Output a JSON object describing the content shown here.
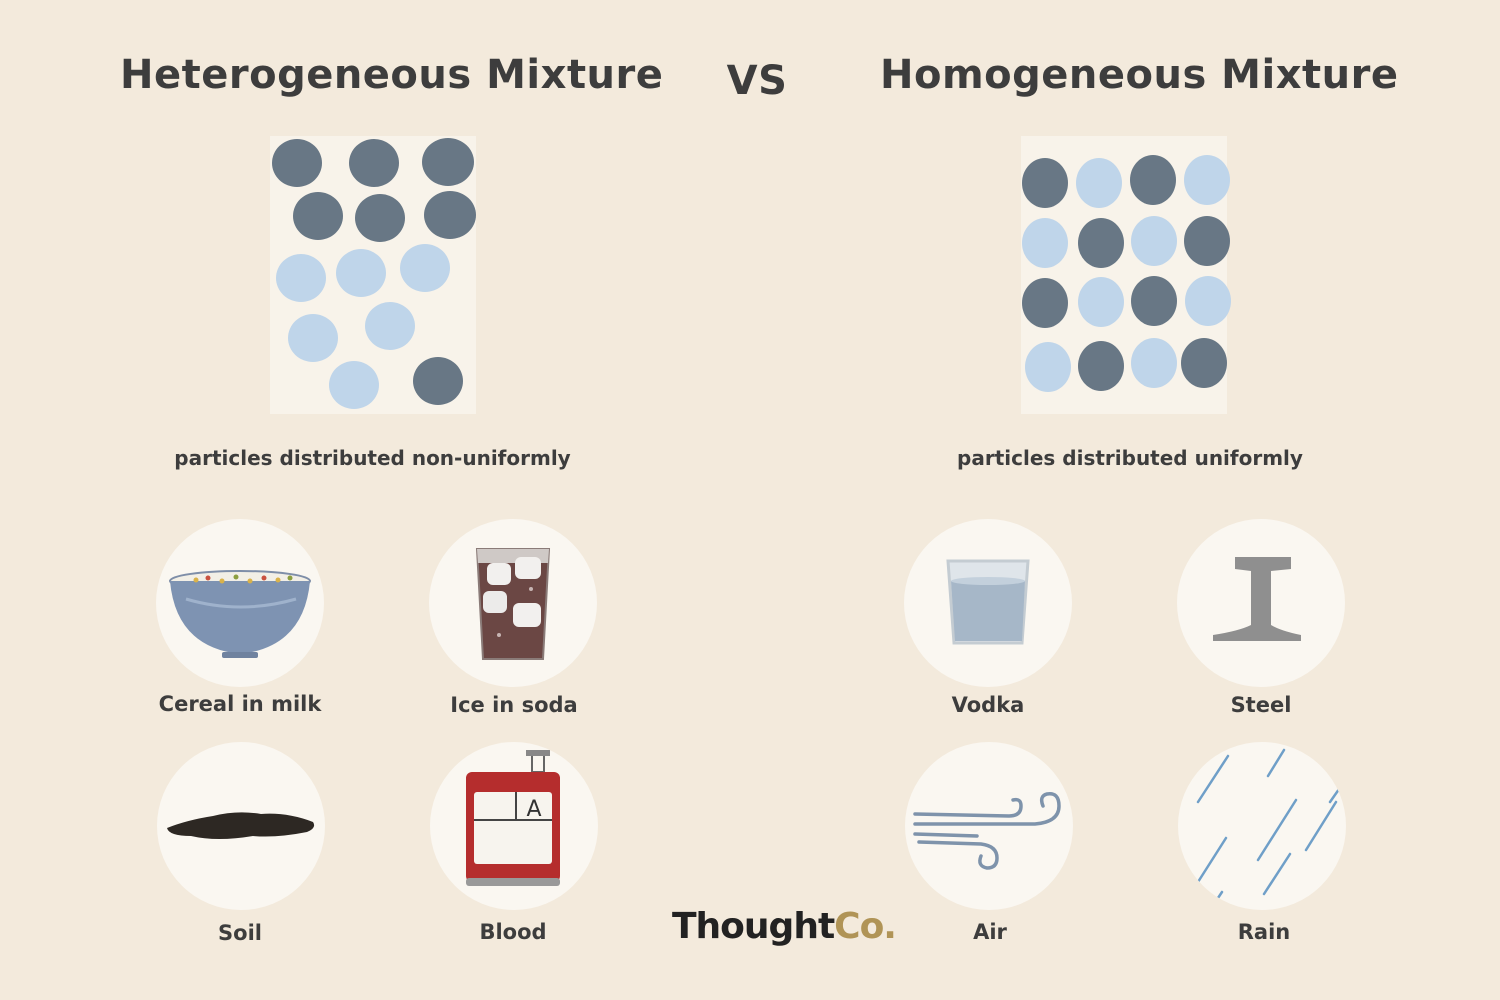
{
  "titles": {
    "left": "Heterogeneous Mixture",
    "vs": "VS",
    "right": "Homogeneous Mixture"
  },
  "captions": {
    "left": "particles distributed non-uniformly",
    "right": "particles distributed uniformly"
  },
  "heterogeneous_examples": [
    {
      "label": "Cereal in milk",
      "icon": "cereal-bowl-icon"
    },
    {
      "label": "Ice in soda",
      "icon": "soda-glass-icon"
    },
    {
      "label": "Soil",
      "icon": "soil-icon"
    },
    {
      "label": "Blood",
      "icon": "blood-bag-icon"
    }
  ],
  "homogeneous_examples": [
    {
      "label": "Vodka",
      "icon": "vodka-glass-icon"
    },
    {
      "label": "Steel",
      "icon": "steel-beam-icon"
    },
    {
      "label": "Air",
      "icon": "wind-icon"
    },
    {
      "label": "Rain",
      "icon": "rain-icon"
    }
  ],
  "blood_bag_letter": "A",
  "logo": {
    "part1": "Thought",
    "part2": "Co."
  },
  "colors": {
    "background": "#f3eadc",
    "dark_particle": "#687785",
    "light_particle": "#bfd5ea",
    "logo_accent": "#b09456"
  }
}
